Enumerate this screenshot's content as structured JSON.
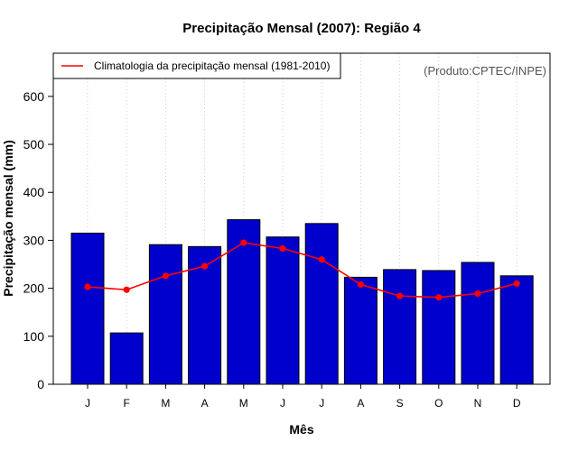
{
  "chart_data": {
    "type": "bar",
    "title": "Precipitação Mensal (2007): Região 4",
    "xlabel": "Mês",
    "ylabel": "Precipitação mensal (mm)",
    "ylim": [
      0,
      690
    ],
    "yticks": [
      0,
      100,
      200,
      300,
      400,
      500,
      600
    ],
    "categories": [
      "J",
      "F",
      "M",
      "A",
      "M",
      "J",
      "J",
      "A",
      "S",
      "O",
      "N",
      "D"
    ],
    "series": [
      {
        "name": "Precipitação mensal (2007)",
        "kind": "bar",
        "color": "#0000cc",
        "values": [
          315,
          107,
          291,
          287,
          343,
          307,
          335,
          223,
          239,
          237,
          254,
          226
        ]
      },
      {
        "name": "Climatologia da precipitação mensal (1981-2010)",
        "kind": "line",
        "color": "#ff0000",
        "values": [
          203,
          197,
          226,
          246,
          295,
          283,
          260,
          208,
          184,
          181,
          189,
          210
        ]
      }
    ],
    "legend": {
      "position": "top-left",
      "entries": [
        "Climatologia da precipitação mensal (1981-2010)"
      ]
    },
    "annotation": "(Produto:CPTEC/INPE)",
    "grid": "vertical-dotted"
  }
}
